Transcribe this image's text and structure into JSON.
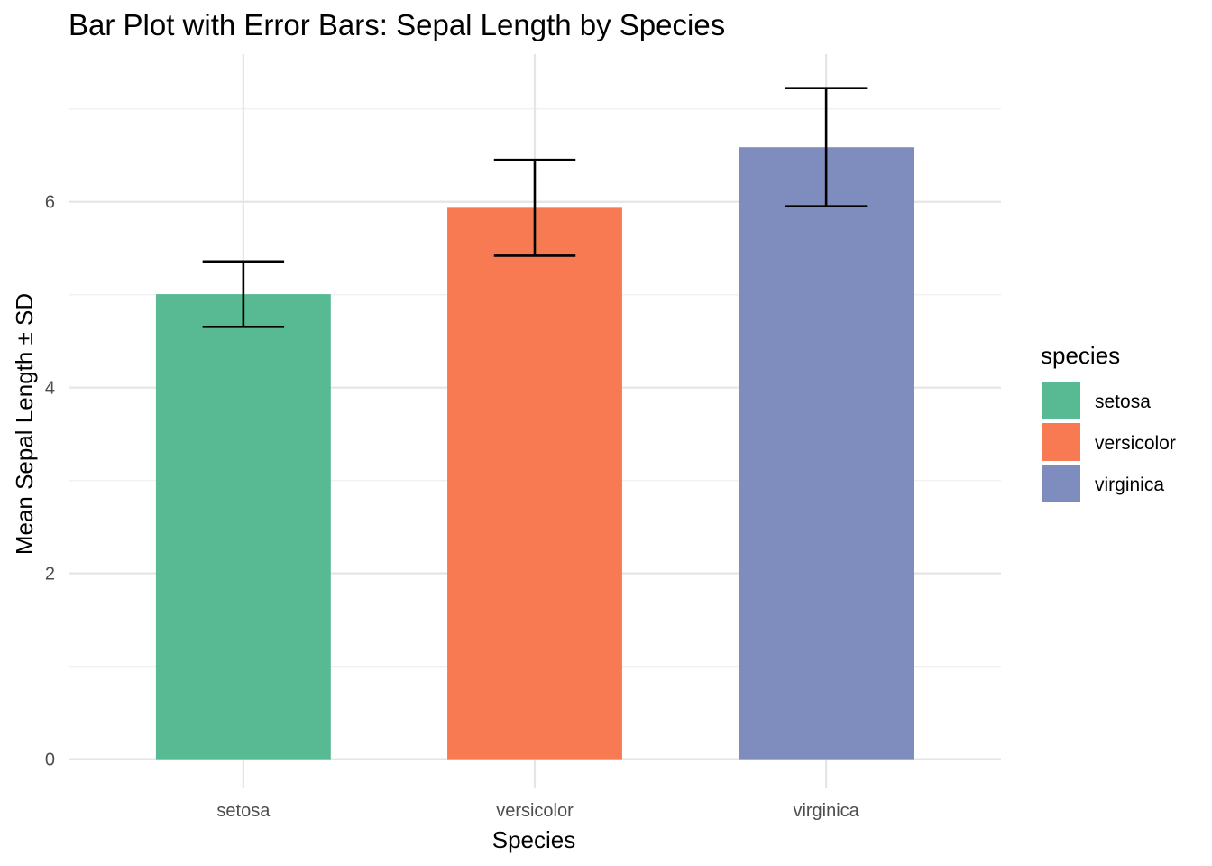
{
  "chart_data": {
    "type": "bar",
    "title": "Bar Plot with Error Bars: Sepal Length by Species",
    "xlabel": "Species",
    "ylabel": "Mean Sepal Length ± SD",
    "categories": [
      "setosa",
      "versicolor",
      "virginica"
    ],
    "values": [
      5.006,
      5.936,
      6.588
    ],
    "error_sd": [
      0.352,
      0.516,
      0.636
    ],
    "colors": [
      "#57BA93",
      "#F77A53",
      "#7E8DBE"
    ],
    "ylim": [
      -0.13,
      7.59
    ],
    "yticks": [
      0,
      2,
      4,
      6
    ],
    "yticks_minor": [
      1,
      3,
      5,
      7
    ],
    "grid": true,
    "legend": {
      "title": "species",
      "position": "right",
      "entries": [
        "setosa",
        "versicolor",
        "virginica"
      ]
    }
  }
}
